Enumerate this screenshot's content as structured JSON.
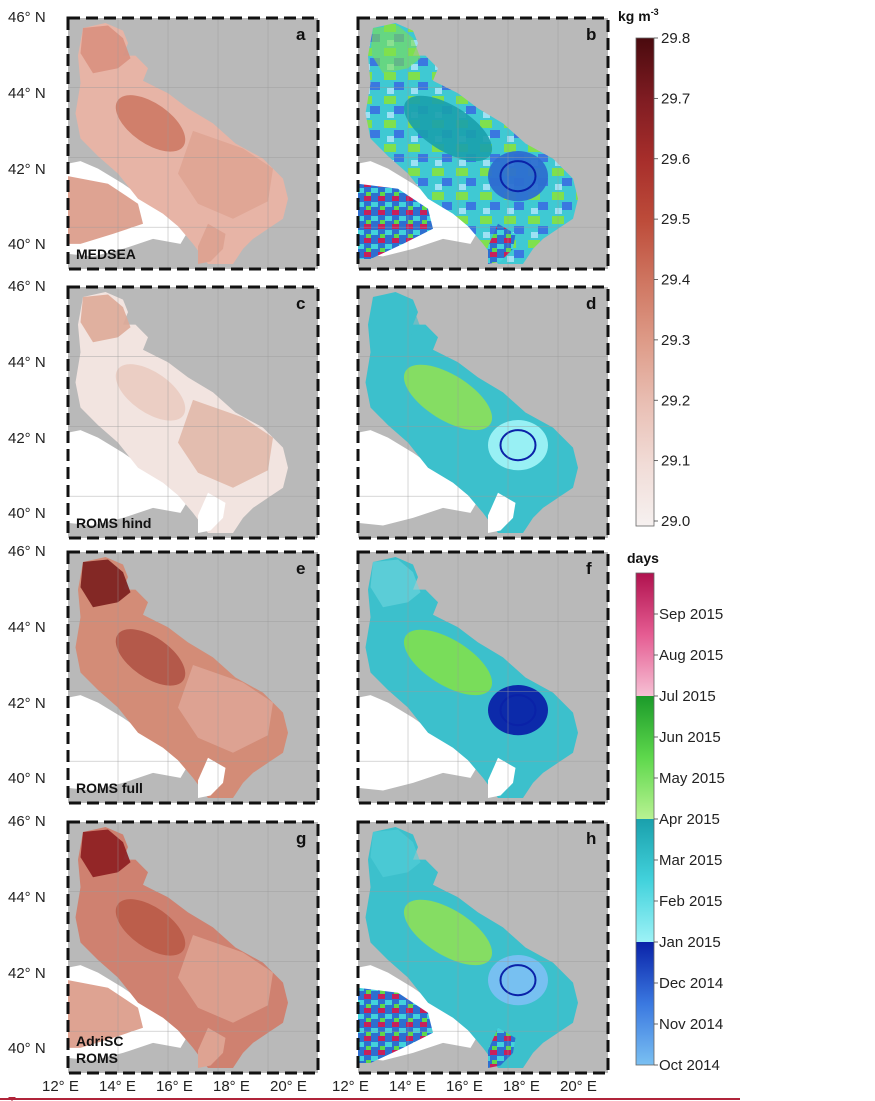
{
  "panels": [
    {
      "letter": "a",
      "label": [
        "MEDSEA"
      ],
      "kind": "density",
      "scheme": "medsea"
    },
    {
      "letter": "b",
      "label": [],
      "kind": "time",
      "scheme": "medsea"
    },
    {
      "letter": "c",
      "label": [
        "ROMS hind"
      ],
      "kind": "density",
      "scheme": "hind"
    },
    {
      "letter": "d",
      "label": [],
      "kind": "time",
      "scheme": "hind"
    },
    {
      "letter": "e",
      "label": [
        "ROMS full"
      ],
      "kind": "density",
      "scheme": "full"
    },
    {
      "letter": "f",
      "label": [],
      "kind": "time",
      "scheme": "full"
    },
    {
      "letter": "g",
      "label": [
        "AdriSC",
        "ROMS"
      ],
      "kind": "density",
      "scheme": "adrisc"
    },
    {
      "letter": "h",
      "label": [],
      "kind": "time",
      "scheme": "adrisc"
    }
  ],
  "axes": {
    "lat_ticks": [
      "46° N",
      "44° N",
      "42° N",
      "40° N"
    ],
    "lon_ticks": [
      "12° E",
      "14° E",
      "16° E",
      "18° E",
      "20° E"
    ]
  },
  "density_colorbar": {
    "title": "kg m",
    "title_superscript": "-3",
    "values": [
      29.8,
      29.7,
      29.6,
      29.5,
      29.4,
      29.3,
      29.2,
      29.1,
      29.0
    ],
    "tick_labels": [
      "29.8",
      "29.7",
      "29.6",
      "29.5",
      "29.4",
      "29.3",
      "29.2",
      "29.1",
      "29.0"
    ],
    "min": 29.0,
    "max": 29.8,
    "colors": [
      "#f6f1f0",
      "#f1dcd7",
      "#e9bfb4",
      "#de9c89",
      "#cf7661",
      "#bd4c3a",
      "#a72e2b",
      "#7f1c22",
      "#4a0a0e"
    ]
  },
  "time_colorbar": {
    "title": "days",
    "tick_labels": [
      "Sep 2015",
      "Aug 2015",
      "Jul 2015",
      "Jun 2015",
      "May 2015",
      "Apr 2015",
      "Mar 2015",
      "Feb 2015",
      "Jan 2015",
      "Dec 2014",
      "Nov 2014",
      "Oct 2014"
    ],
    "segments": [
      {
        "from": "Oct 2014",
        "to": "Jan 2015",
        "colors": [
          "#7ac0f2",
          "#3a78e0",
          "#0a22a8"
        ]
      },
      {
        "from": "Jan 2015",
        "to": "Apr 2015",
        "colors": [
          "#9df2f6",
          "#42d2dc",
          "#1aa0ac"
        ]
      },
      {
        "from": "Apr 2015",
        "to": "Jul 2015",
        "colors": [
          "#b8f292",
          "#5ed84c",
          "#1b9a2a"
        ]
      },
      {
        "from": "Jul 2015",
        "to": "Oct 2015",
        "colors": [
          "#f6c0d4",
          "#e55c92",
          "#b0124e"
        ]
      }
    ]
  },
  "colors": {
    "land": "#b9b9b9",
    "outside": "#ffffff",
    "frame": "#111111",
    "bottom_line": "#b0243a"
  }
}
